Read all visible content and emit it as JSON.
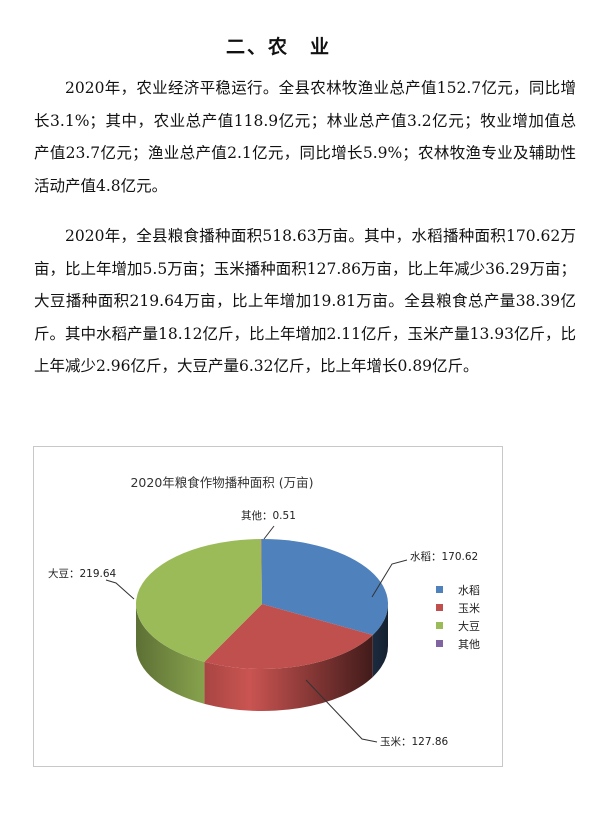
{
  "heading": "二、农　业",
  "paragraphs": [
    "2020年，农业经济平稳运行。全县农林牧渔业总产值152.7亿元，同比增长3.1%；其中，农业总产值118.9亿元；林业总产值3.2亿元；牧业增加值总产值23.7亿元；渔业总产值2.1亿元，同比增长5.9%；农林牧渔专业及辅助性活动产值4.8亿元。",
    "2020年，全县粮食播种面积518.63万亩。其中，水稻播种面积170.62万亩，比上年增加5.5万亩；玉米播种面积127.86万亩，比上年减少36.29万亩；大豆播种面积219.64万亩，比上年增加19.81万亩。全县粮食总产量38.39亿斤。其中水稻产量18.12亿斤，比上年增加2.11亿斤，玉米产量13.93亿斤，比上年减少2.96亿斤，大豆产量6.32亿斤，比上年增长0.89亿斤。"
  ],
  "chart_data": {
    "type": "pie",
    "style": "3d",
    "title": "2020年粮食作物播种面积 (万亩)",
    "categories": [
      "水稻",
      "玉米",
      "大豆",
      "其他"
    ],
    "values": [
      170.62,
      127.86,
      219.64,
      0.51
    ],
    "data_labels": [
      "水稻：170.62",
      "玉米：127.86",
      "大豆：219.64",
      "其他：0.51"
    ],
    "colors": [
      "#4f81bd",
      "#c0504d",
      "#9bbb59",
      "#8064a2"
    ],
    "legend": "right"
  }
}
